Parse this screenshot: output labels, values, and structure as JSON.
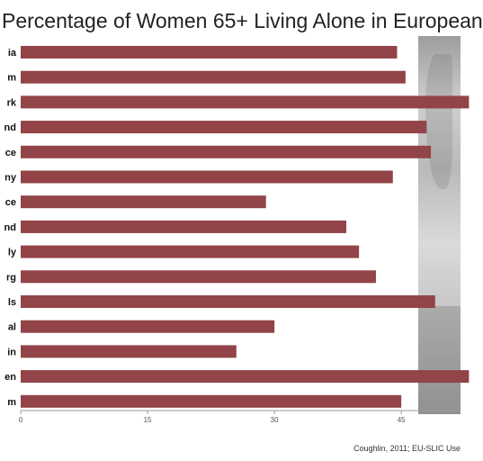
{
  "title": "Percentage of Women 65+ Living Alone in European",
  "source": "Coughlin, 2011; EU-SLIC Use",
  "colors": {
    "bar": "#924448",
    "axis": "#999999",
    "text": "#111111"
  },
  "chart_data": {
    "type": "bar",
    "orientation": "horizontal",
    "categories": [
      "ia",
      "m",
      "rk",
      "nd",
      "ce",
      "ny",
      "ce",
      "nd",
      "ly",
      "rg",
      "ls",
      "al",
      "in",
      "en",
      "m"
    ],
    "values": [
      44.5,
      45.5,
      53,
      48,
      48.5,
      44,
      29,
      38.5,
      40,
      42,
      49,
      30,
      25.5,
      53,
      45
    ],
    "xlim": [
      0,
      52
    ],
    "xticks": [
      0,
      15,
      30,
      45
    ],
    "title": "Percentage of Women 65+ Living Alone in European",
    "xlabel": "",
    "ylabel": "",
    "grid": false
  }
}
